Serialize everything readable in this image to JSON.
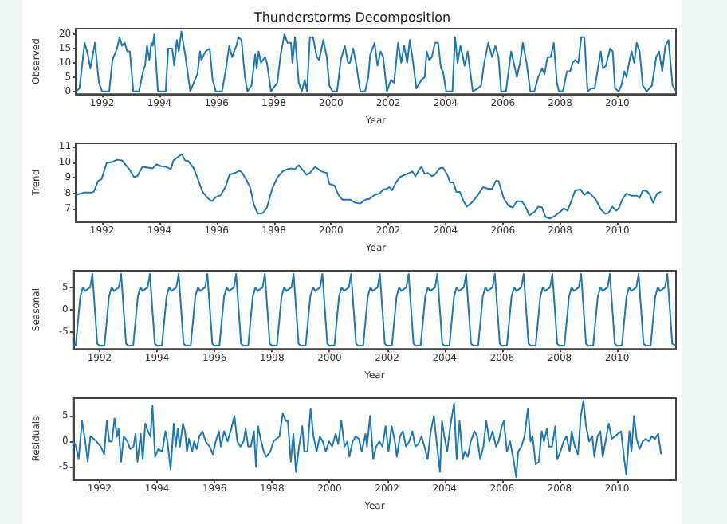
{
  "chart_data": [
    {
      "type": "line",
      "title": "Thunderstorms Decomposition",
      "xlabel": "Year",
      "ylabel": "Observed",
      "xlim": [
        1991.08,
        2012.05
      ],
      "xticks": [
        1992,
        1994,
        1996,
        1998,
        2000,
        2002,
        2004,
        2006,
        2008,
        2010
      ],
      "ylim": [
        -1,
        22
      ],
      "yticks": [
        0,
        5,
        10,
        15,
        20
      ],
      "x": [
        1991.09,
        1991.21,
        1991.39,
        1991.5,
        1991.59,
        1991.75,
        1991.89,
        1992.0,
        1992.25,
        1992.36,
        1992.52,
        1992.61,
        1992.7,
        1992.79,
        1992.88,
        1992.97,
        1993.09,
        1993.29,
        1993.43,
        1993.5,
        1993.57,
        1993.65,
        1993.72,
        1993.77,
        1993.82,
        1993.95,
        1994.22,
        1994.31,
        1994.45,
        1994.52,
        1994.61,
        1994.68,
        1994.77,
        1994.9,
        1995.08,
        1995.2,
        1995.33,
        1995.42,
        1995.47,
        1995.61,
        1995.76,
        1995.86,
        1995.97,
        1996.19,
        1996.33,
        1996.44,
        1996.54,
        1996.69,
        1996.76,
        1996.87,
        1996.99,
        1997.08,
        1997.22,
        1997.35,
        1997.4,
        1997.47,
        1997.55,
        1997.69,
        1997.76,
        1997.9,
        1998.12,
        1998.24,
        1998.37,
        1998.48,
        1998.6,
        1998.65,
        1998.74,
        1998.87,
        1998.98,
        1999.08,
        1999.16,
        1999.26,
        1999.37,
        1999.5,
        1999.58,
        1999.73,
        1999.85,
        1999.94,
        2000.05,
        2000.21,
        2000.34,
        2000.48,
        2000.59,
        2000.66,
        2000.77,
        2000.87,
        2001.02,
        2001.19,
        2001.3,
        2001.37,
        2001.52,
        2001.62,
        2001.73,
        2001.82,
        2001.95,
        2002.09,
        2002.2,
        2002.34,
        2002.45,
        2002.55,
        2002.66,
        2002.75,
        2002.84,
        2002.98,
        2003.16,
        2003.27,
        2003.34,
        2003.43,
        2003.52,
        2003.63,
        2003.74,
        2003.84,
        2003.91,
        2004.02,
        2004.24,
        2004.33,
        2004.42,
        2004.52,
        2004.67,
        2004.77,
        2004.86,
        2004.95,
        2005.13,
        2005.24,
        2005.35,
        2005.49,
        2005.63,
        2005.74,
        2005.85,
        2005.94,
        2006.11,
        2006.29,
        2006.38,
        2006.49,
        2006.6,
        2006.7,
        2006.83,
        2006.96,
        2007.1,
        2007.24,
        2007.37,
        2007.46,
        2007.56,
        2007.67,
        2007.78,
        2007.89,
        2007.96,
        2008.1,
        2008.24,
        2008.35,
        2008.44,
        2008.53,
        2008.64,
        2008.74,
        2008.85,
        2008.96,
        2009.1,
        2009.21,
        2009.32,
        2009.42,
        2009.5,
        2009.6,
        2009.75,
        2009.84,
        2009.92,
        2010.05,
        2010.14,
        2010.25,
        2010.32,
        2010.43,
        2010.5,
        2010.59,
        2010.68,
        2010.78,
        2010.89,
        2011.03,
        2011.21,
        2011.36,
        2011.46,
        2011.57,
        2011.68,
        2011.79,
        2011.93,
        2012.05
      ],
      "series": [
        {
          "color": "#1f77b4",
          "values": [
            0,
            1,
            17,
            13,
            8,
            17,
            3,
            0,
            0,
            11,
            15,
            19,
            16,
            17,
            14,
            14,
            0,
            0,
            7,
            9,
            16,
            11,
            17,
            16,
            20,
            0,
            0,
            15,
            15,
            9,
            18,
            14,
            21,
            13,
            0,
            3,
            6,
            14,
            11,
            14,
            15,
            4,
            0,
            0,
            8,
            16,
            12,
            16,
            19,
            18,
            5,
            0,
            2,
            13,
            8,
            14,
            10,
            12,
            10,
            0,
            3,
            13,
            20,
            17,
            17,
            10,
            19,
            3,
            0,
            4,
            0,
            19,
            19,
            12,
            11,
            18,
            12,
            2,
            0,
            0,
            11,
            16,
            10,
            10,
            15,
            10,
            0,
            0,
            5,
            13,
            17,
            9,
            14,
            12,
            0,
            4,
            3,
            17,
            10,
            16,
            10,
            18,
            12,
            1,
            4,
            5,
            14,
            11,
            12,
            17,
            17,
            8,
            7,
            0,
            0,
            19,
            10,
            16,
            9,
            14,
            7,
            0,
            1,
            2,
            10,
            17,
            12,
            16,
            12,
            0,
            0,
            14,
            10,
            5,
            10,
            17,
            10,
            0,
            0,
            5,
            8,
            6,
            12,
            12,
            17,
            3,
            0,
            0,
            7,
            7,
            10,
            11,
            10,
            19,
            19,
            0,
            1,
            1,
            8,
            14,
            8,
            9,
            15,
            14,
            1,
            0,
            2,
            7,
            5,
            11,
            14,
            10,
            17,
            14,
            2,
            0,
            2,
            12,
            14,
            7,
            16,
            18,
            2,
            0
          ]
        }
      ]
    },
    {
      "type": "line",
      "xlabel": "Year",
      "ylabel": "Trend",
      "xlim": [
        1991.08,
        2012.05
      ],
      "xticks": [
        1992,
        1994,
        1996,
        1998,
        2000,
        2002,
        2004,
        2006,
        2008,
        2010
      ],
      "ylim": [
        6.2,
        11.2
      ],
      "yticks": [
        7,
        8,
        9,
        10,
        11
      ],
      "x": [
        1991.09,
        1991.36,
        1991.62,
        1991.71,
        1991.86,
        1991.98,
        1992.16,
        1992.34,
        1992.52,
        1992.7,
        1992.79,
        1992.97,
        1993.11,
        1993.23,
        1993.41,
        1993.59,
        1993.77,
        1993.9,
        1994.04,
        1994.22,
        1994.4,
        1994.49,
        1994.67,
        1994.79,
        1994.9,
        1995.02,
        1995.2,
        1995.33,
        1995.51,
        1995.69,
        1995.83,
        1995.97,
        1996.15,
        1996.33,
        1996.45,
        1996.63,
        1996.81,
        1996.9,
        1997.03,
        1997.17,
        1997.3,
        1997.44,
        1997.62,
        1997.76,
        1997.94,
        1998.12,
        1998.3,
        1998.48,
        1998.6,
        1998.74,
        1998.87,
        1998.96,
        1999.14,
        1999.26,
        1999.44,
        1999.67,
        1999.85,
        1999.94,
        2000.12,
        2000.26,
        2000.39,
        2000.66,
        2000.84,
        2001.02,
        2001.19,
        2001.34,
        2001.52,
        2001.7,
        2001.82,
        2001.95,
        2002.05,
        2002.13,
        2002.27,
        2002.41,
        2002.59,
        2002.72,
        2002.84,
        2002.95,
        2003.07,
        2003.16,
        2003.27,
        2003.38,
        2003.52,
        2003.63,
        2003.79,
        2003.91,
        2004.06,
        2004.16,
        2004.27,
        2004.38,
        2004.5,
        2004.63,
        2004.74,
        2004.91,
        2005.13,
        2005.31,
        2005.49,
        2005.63,
        2005.76,
        2005.85,
        2006.03,
        2006.2,
        2006.35,
        2006.49,
        2006.67,
        2006.83,
        2006.92,
        2007.1,
        2007.24,
        2007.37,
        2007.49,
        2007.64,
        2007.81,
        2007.99,
        2008.13,
        2008.26,
        2008.39,
        2008.53,
        2008.71,
        2008.85,
        2008.98,
        2009.1,
        2009.25,
        2009.42,
        2009.57,
        2009.69,
        2009.82,
        2009.96,
        2010.05,
        2010.17,
        2010.32,
        2010.5,
        2010.68,
        2010.78,
        2010.89,
        2011.03,
        2011.14,
        2011.25,
        2011.39,
        2011.53
      ],
      "series": [
        {
          "color": "#1f77b4",
          "values": [
            7.9,
            8.05,
            8.05,
            8.1,
            8.8,
            8.9,
            9.95,
            10.0,
            10.15,
            10.1,
            9.9,
            9.5,
            9.05,
            9.1,
            9.7,
            9.65,
            9.6,
            9.85,
            9.75,
            9.7,
            9.55,
            10.1,
            10.35,
            10.5,
            10.1,
            10.05,
            9.6,
            9.0,
            8.1,
            7.7,
            7.5,
            7.75,
            7.9,
            8.5,
            9.2,
            9.3,
            9.45,
            9.3,
            8.9,
            8.4,
            7.3,
            6.7,
            6.75,
            7.1,
            8.3,
            9.0,
            9.4,
            9.55,
            9.6,
            9.55,
            9.8,
            9.6,
            9.2,
            9.3,
            9.7,
            9.4,
            9.3,
            8.6,
            8.5,
            7.9,
            7.6,
            7.6,
            7.4,
            7.35,
            7.6,
            7.65,
            7.9,
            8.0,
            8.25,
            8.3,
            8.4,
            8.2,
            8.7,
            9.05,
            9.2,
            9.3,
            9.4,
            9.1,
            9.5,
            9.7,
            9.25,
            9.3,
            9.1,
            9.2,
            9.6,
            9.65,
            9.2,
            8.7,
            8.7,
            8.1,
            8.1,
            7.5,
            7.15,
            7.4,
            7.9,
            8.4,
            8.3,
            8.3,
            8.8,
            8.8,
            7.7,
            7.2,
            7.1,
            7.5,
            7.5,
            7.0,
            6.6,
            6.8,
            7.15,
            7.1,
            6.5,
            6.4,
            6.55,
            6.8,
            7.05,
            6.9,
            7.5,
            8.2,
            8.25,
            7.9,
            8.1,
            7.9,
            7.6,
            7.0,
            6.7,
            6.75,
            7.15,
            6.9,
            7.05,
            7.6,
            8.0,
            7.85,
            7.85,
            7.7,
            8.2,
            8.15,
            7.9,
            7.4,
            8.0,
            8.1
          ]
        }
      ]
    },
    {
      "type": "line",
      "xlabel": "Year",
      "ylabel": "Seasonal",
      "xlim": [
        1991.08,
        2012.05
      ],
      "xticks": [
        1992,
        1994,
        1996,
        1998,
        2000,
        2002,
        2004,
        2006,
        2008,
        2010
      ],
      "ylim": [
        -8.7,
        8.7
      ],
      "yticks": [
        -5,
        0,
        5
      ],
      "x": [
        1991.08,
        1991.17,
        1991.33,
        1991.42,
        1991.5,
        1991.67,
        1991.75,
        1991.92,
        1992,
        1992.17,
        1992.33,
        1992.42,
        1992.5,
        1992.67,
        1992.75,
        1992.92,
        1993,
        1993.17,
        1993.33,
        1993.42,
        1993.5,
        1993.67,
        1993.75,
        1993.92,
        1994,
        1994.17,
        1994.33,
        1994.42,
        1994.5,
        1994.67,
        1994.75,
        1994.92,
        1995,
        1995.17,
        1995.33,
        1995.42,
        1995.5,
        1995.67,
        1995.75,
        1995.92,
        1996,
        1996.17,
        1996.33,
        1996.42,
        1996.5,
        1996.67,
        1996.75,
        1996.92,
        1997,
        1997.17,
        1997.33,
        1997.42,
        1997.5,
        1997.67,
        1997.75,
        1997.92,
        1998,
        1998.17,
        1998.33,
        1998.42,
        1998.5,
        1998.67,
        1998.75,
        1998.92,
        1999,
        1999.17,
        1999.33,
        1999.42,
        1999.5,
        1999.67,
        1999.75,
        1999.92,
        2000,
        2000.17,
        2000.33,
        2000.42,
        2000.5,
        2000.67,
        2000.75,
        2000.92,
        2001,
        2001.17,
        2001.33,
        2001.42,
        2001.5,
        2001.67,
        2001.75,
        2001.92,
        2002,
        2002.17,
        2002.33,
        2002.42,
        2002.5,
        2002.67,
        2002.75,
        2002.92,
        2003,
        2003.17,
        2003.33,
        2003.42,
        2003.5,
        2003.67,
        2003.75,
        2003.92,
        2004,
        2004.17,
        2004.33,
        2004.42,
        2004.5,
        2004.67,
        2004.75,
        2004.92,
        2005,
        2005.17,
        2005.33,
        2005.42,
        2005.5,
        2005.67,
        2005.75,
        2005.92,
        2006,
        2006.17,
        2006.33,
        2006.42,
        2006.5,
        2006.67,
        2006.75,
        2006.92,
        2007,
        2007.17,
        2007.33,
        2007.42,
        2007.5,
        2007.67,
        2007.75,
        2007.92,
        2008,
        2008.17,
        2008.33,
        2008.42,
        2008.5,
        2008.67,
        2008.75,
        2008.92,
        2009,
        2009.17,
        2009.33,
        2009.42,
        2009.5,
        2009.67,
        2009.75,
        2009.92,
        2010,
        2010.17,
        2010.33,
        2010.42,
        2010.5,
        2010.67,
        2010.75,
        2010.92,
        2011,
        2011.17,
        2011.33,
        2011.42,
        2011.5,
        2011.67,
        2011.75,
        2011.92,
        2012.05
      ],
      "series": [
        {
          "color": "#1f77b4",
          "values": [
            -7.8,
            -7.9,
            3,
            5,
            4.2,
            5,
            8,
            -7.5,
            -8,
            -7.9,
            3,
            5,
            4.2,
            5,
            8,
            -7.5,
            -8,
            -7.9,
            3,
            5,
            4.2,
            5,
            8,
            -7.5,
            -8,
            -7.9,
            3,
            5,
            4.2,
            5,
            8,
            -7.5,
            -8,
            -7.9,
            3,
            5,
            4.2,
            5,
            8,
            -7.5,
            -8,
            -7.9,
            3,
            5,
            4.2,
            5,
            8,
            -7.5,
            -8,
            -7.9,
            3,
            5,
            4.2,
            5,
            8,
            -7.5,
            -8,
            -7.9,
            3,
            5,
            4.2,
            5,
            8,
            -7.5,
            -8,
            -7.9,
            3,
            5,
            4.2,
            5,
            8,
            -7.5,
            -8,
            -7.9,
            3,
            5,
            4.2,
            5,
            8,
            -7.5,
            -8,
            -7.9,
            3,
            5,
            4.2,
            5,
            8,
            -7.5,
            -8,
            -7.9,
            3,
            5,
            4.2,
            5,
            8,
            -7.5,
            -8,
            -7.9,
            3,
            5,
            4.2,
            5,
            8,
            -7.5,
            -8,
            -7.9,
            3,
            5,
            4.2,
            5,
            8,
            -7.5,
            -8,
            -7.9,
            3,
            5,
            4.2,
            5,
            8,
            -7.5,
            -8,
            -7.9,
            3,
            5,
            4.2,
            5,
            8,
            -7.5,
            -8,
            -7.9,
            3,
            5,
            4.2,
            5,
            8,
            -7.5,
            -8,
            -7.9,
            3,
            5,
            4.2,
            5,
            8,
            -7.5,
            -8,
            -7.9,
            3,
            5,
            4.2,
            5,
            8,
            -7.5,
            -8,
            -7.9,
            3,
            5,
            4.2,
            5,
            8,
            -7.5,
            -8,
            -7.9,
            3,
            5,
            4.2,
            5,
            8,
            -7.5,
            -8
          ]
        }
      ]
    },
    {
      "type": "line",
      "xlabel": "Year",
      "ylabel": "Residuals",
      "xlim": [
        1991.08,
        2012.05
      ],
      "xticks": [
        1992,
        1994,
        1996,
        1998,
        2000,
        2002,
        2004,
        2006,
        2008,
        2010
      ],
      "ylim": [
        -7.5,
        8.5
      ],
      "yticks": [
        -5,
        0,
        5
      ],
      "x": [
        1991.09,
        1991.18,
        1991.27,
        1991.39,
        1991.5,
        1991.59,
        1991.68,
        1991.8,
        1991.89,
        1992.04,
        1992.16,
        1992.25,
        1992.34,
        1992.43,
        1992.52,
        1992.61,
        1992.66,
        1992.75,
        1992.84,
        1992.97,
        1993.06,
        1993.18,
        1993.25,
        1993.32,
        1993.43,
        1993.5,
        1993.59,
        1993.68,
        1993.77,
        1993.84,
        1993.93,
        1994.04,
        1994.18,
        1994.29,
        1994.36,
        1994.47,
        1994.58,
        1994.65,
        1994.72,
        1994.79,
        1994.9,
        1994.97,
        1995.04,
        1995.11,
        1995.22,
        1995.29,
        1995.38,
        1995.47,
        1995.58,
        1995.69,
        1995.83,
        1995.94,
        1996.04,
        1996.15,
        1996.22,
        1996.33,
        1996.45,
        1996.58,
        1996.69,
        1996.79,
        1996.9,
        1997.01,
        1997.08,
        1997.17,
        1997.26,
        1997.37,
        1997.44,
        1997.51,
        1997.62,
        1997.71,
        1997.8,
        1997.94,
        1998.05,
        1998.15,
        1998.26,
        1998.37,
        1998.48,
        1998.55,
        1998.65,
        1998.74,
        1998.83,
        1998.94,
        1999.05,
        1999.12,
        1999.23,
        1999.34,
        1999.44,
        1999.55,
        1999.66,
        1999.76,
        1999.87,
        1999.98,
        2000.09,
        2000.21,
        2000.3,
        2000.41,
        2000.52,
        2000.62,
        2000.69,
        2000.8,
        2000.91,
        2001.02,
        2001.12,
        2001.25,
        2001.3,
        2001.41,
        2001.52,
        2001.62,
        2001.73,
        2001.84,
        2001.95,
        2002.05,
        2002.16,
        2002.27,
        2002.34,
        2002.45,
        2002.55,
        2002.66,
        2002.77,
        2002.88,
        2002.98,
        2003.09,
        2003.2,
        2003.3,
        2003.41,
        2003.52,
        2003.63,
        2003.74,
        2003.84,
        2003.91,
        2003.99,
        2004.09,
        2004.2,
        2004.33,
        2004.42,
        2004.52,
        2004.63,
        2004.7,
        2004.81,
        2004.91,
        2005.04,
        2005.13,
        2005.24,
        2005.35,
        2005.45,
        2005.56,
        2005.67,
        2005.79,
        2005.88,
        2005.99,
        2006.06,
        2006.17,
        2006.28,
        2006.38,
        2006.49,
        2006.56,
        2006.67,
        2006.78,
        2006.9,
        2006.99,
        2007.06,
        2007.17,
        2007.28,
        2007.38,
        2007.46,
        2007.56,
        2007.63,
        2007.74,
        2007.85,
        2007.92,
        2008.03,
        2008.14,
        2008.24,
        2008.35,
        2008.42,
        2008.53,
        2008.64,
        2008.74,
        2008.83,
        2008.92,
        2009.03,
        2009.14,
        2009.21,
        2009.32,
        2009.42,
        2009.5,
        2009.6,
        2009.71,
        2009.82,
        2009.92,
        2010.03,
        2010.14,
        2010.25,
        2010.32,
        2010.43,
        2010.5,
        2010.59,
        2010.68,
        2010.78,
        2010.89,
        2011.0,
        2011.11,
        2011.21,
        2011.32,
        2011.43,
        2011.53
      ],
      "series": [
        {
          "color": "#1f77b4",
          "values": [
            0,
            -1,
            -3.5,
            4,
            0,
            -4,
            1,
            0.5,
            0,
            -1,
            -2.5,
            4,
            0,
            0,
            4.5,
            1,
            2.5,
            -4,
            1,
            0,
            -1.5,
            -1,
            1.5,
            -4,
            1.5,
            -3.5,
            3.5,
            2,
            1,
            7,
            -3,
            -1.5,
            -2,
            2,
            0,
            -5.5,
            3.5,
            -1,
            2.5,
            -1,
            3.5,
            2,
            -2,
            0.5,
            -2,
            0,
            -1.5,
            1,
            2,
            0,
            -1,
            -2.5,
            0,
            2,
            -1,
            2,
            0,
            2.5,
            5,
            0,
            -1,
            0,
            2.5,
            -1,
            -1,
            2,
            -5,
            3,
            0,
            -2,
            -3,
            -2,
            0,
            0.5,
            1,
            5.5,
            4,
            4,
            -4,
            1.5,
            -6,
            -1,
            3,
            -2,
            -2,
            6.5,
            1,
            -2,
            1,
            0,
            -2,
            0,
            -1,
            1.5,
            -0.5,
            4,
            -1,
            0,
            -3,
            0,
            1,
            0.5,
            -2,
            1.5,
            -1,
            5,
            -3.5,
            -1,
            0,
            -1,
            3,
            -2,
            3,
            0,
            -3,
            1,
            2,
            -1,
            0,
            2,
            -1,
            -0.5,
            1,
            -1,
            -3.5,
            2,
            5,
            -1,
            -6,
            4,
            1,
            -2,
            3,
            7.5,
            -3.5,
            4,
            -3.5,
            -2,
            -3,
            0,
            2,
            1,
            -3.5,
            -1,
            4,
            0,
            2,
            -1,
            0,
            3,
            4,
            -2,
            0,
            -3,
            -7,
            -2,
            -1,
            1,
            6.5,
            0,
            1,
            -4.5,
            -4,
            2,
            0,
            2.5,
            -1,
            -1,
            3,
            -3.5,
            -2,
            0,
            1,
            -2,
            2,
            -1,
            -2.5,
            5,
            8,
            3,
            0,
            1,
            -3,
            1,
            2,
            -3,
            0,
            3.5,
            0.5,
            1,
            1.5,
            2,
            -3.5,
            -6.5,
            2,
            -2,
            5,
            0.5,
            -1.5,
            0,
            0.5,
            0,
            1,
            0.5,
            1.5,
            -2.5
          ]
        }
      ]
    }
  ]
}
